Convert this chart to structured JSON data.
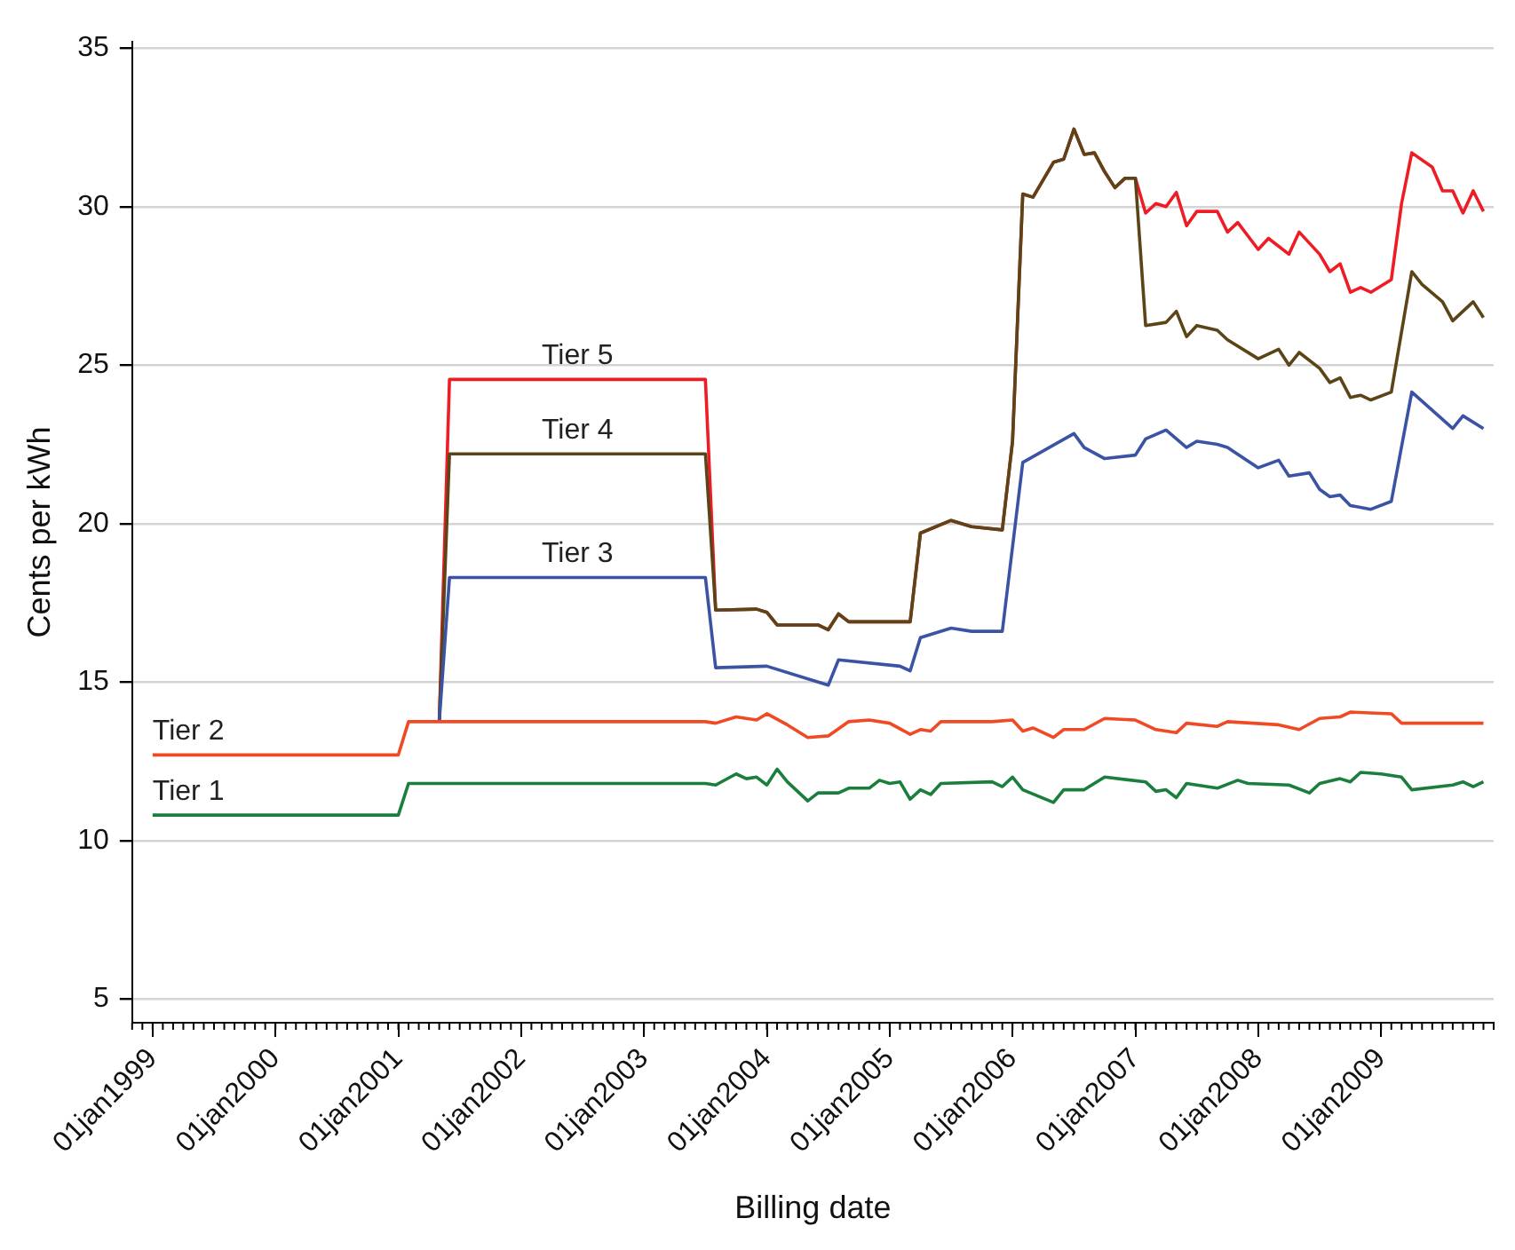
{
  "chart_data": {
    "type": "line",
    "xlabel": "Billing date",
    "ylabel": "Cents per kWh",
    "xlim": [
      "1998-11",
      "2009-12"
    ],
    "ylim": [
      4.25,
      35.2
    ],
    "xticks": [
      {
        "value": "1999-01-01",
        "label": "01jan1999"
      },
      {
        "value": "2000-01-01",
        "label": "01jan2000"
      },
      {
        "value": "2001-01-01",
        "label": "01jan2001"
      },
      {
        "value": "2002-01-01",
        "label": "01jan2002"
      },
      {
        "value": "2003-01-01",
        "label": "01jan2003"
      },
      {
        "value": "2004-01-01",
        "label": "01jan2004"
      },
      {
        "value": "2005-01-01",
        "label": "01jan2005"
      },
      {
        "value": "2006-01-01",
        "label": "01jan2006"
      },
      {
        "value": "2007-01-01",
        "label": "01jan2007"
      },
      {
        "value": "2008-01-01",
        "label": "01jan2008"
      },
      {
        "value": "2009-01-01",
        "label": "01jan2009"
      }
    ],
    "yticks": [
      5,
      10,
      15,
      20,
      25,
      30,
      35
    ],
    "grid": "y",
    "legend": false,
    "marker": "none",
    "line_style": "solid",
    "series": [
      {
        "name": "Tier 1",
        "color": "#1a7f3c",
        "x": [
          "1999-01",
          "2001-01",
          "2001-02",
          "2003-07",
          "2003-08",
          "2003-10",
          "2003-11",
          "2003-12",
          "2004-01",
          "2004-02",
          "2004-03",
          "2004-05",
          "2004-06",
          "2004-08",
          "2004-09",
          "2004-11",
          "2004-12",
          "2005-01",
          "2005-02",
          "2005-03",
          "2005-04",
          "2005-05",
          "2005-06",
          "2005-11",
          "2005-12",
          "2006-01",
          "2006-02",
          "2006-05",
          "2006-06",
          "2006-08",
          "2006-10",
          "2007-02",
          "2007-03",
          "2007-04",
          "2007-05",
          "2007-06",
          "2007-09",
          "2007-11",
          "2007-12",
          "2008-04",
          "2008-06",
          "2008-07",
          "2008-09",
          "2008-10",
          "2008-11",
          "2009-01",
          "2009-03",
          "2009-04",
          "2009-08",
          "2009-09",
          "2009-10",
          "2009-11"
        ],
        "values": [
          10.8,
          10.8,
          11.8,
          11.8,
          11.75,
          12.1,
          11.95,
          12.0,
          11.75,
          12.25,
          11.85,
          11.25,
          11.5,
          11.5,
          11.65,
          11.65,
          11.9,
          11.8,
          11.85,
          11.3,
          11.6,
          11.45,
          11.8,
          11.85,
          11.7,
          12.0,
          11.6,
          11.2,
          11.6,
          11.6,
          12.0,
          11.85,
          11.55,
          11.6,
          11.35,
          11.8,
          11.65,
          11.9,
          11.8,
          11.75,
          11.5,
          11.8,
          11.95,
          11.85,
          12.15,
          12.1,
          12.0,
          11.6,
          11.75,
          11.85,
          11.7,
          11.85
        ]
      },
      {
        "name": "Tier 2",
        "color": "#f04a24",
        "x": [
          "1999-01",
          "2001-01",
          "2001-02",
          "2003-07",
          "2003-08",
          "2003-10",
          "2003-11",
          "2003-12",
          "2004-01",
          "2004-03",
          "2004-05",
          "2004-07",
          "2004-09",
          "2004-11",
          "2005-01",
          "2005-03",
          "2005-04",
          "2005-05",
          "2005-06",
          "2005-11",
          "2006-01",
          "2006-02",
          "2006-03",
          "2006-05",
          "2006-06",
          "2006-08",
          "2006-10",
          "2007-01",
          "2007-03",
          "2007-05",
          "2007-06",
          "2007-09",
          "2007-10",
          "2008-03",
          "2008-05",
          "2008-07",
          "2008-09",
          "2008-10",
          "2009-02",
          "2009-03",
          "2009-11"
        ],
        "values": [
          12.7,
          12.7,
          13.75,
          13.75,
          13.7,
          13.9,
          13.85,
          13.8,
          14.0,
          13.65,
          13.25,
          13.3,
          13.75,
          13.8,
          13.7,
          13.35,
          13.5,
          13.45,
          13.75,
          13.75,
          13.8,
          13.45,
          13.55,
          13.25,
          13.5,
          13.5,
          13.85,
          13.8,
          13.5,
          13.4,
          13.7,
          13.6,
          13.75,
          13.65,
          13.5,
          13.85,
          13.9,
          14.05,
          14.0,
          13.7,
          13.7
        ]
      },
      {
        "name": "Tier 3",
        "color": "#3a53a4",
        "x": [
          "2001-05",
          "2001-06",
          "2003-07",
          "2003-08",
          "2004-01",
          "2004-07",
          "2004-08",
          "2005-02",
          "2005-03",
          "2005-04",
          "2005-07",
          "2005-09",
          "2005-12",
          "2006-02",
          "2006-07",
          "2006-08",
          "2006-10",
          "2007-01",
          "2007-02",
          "2007-04",
          "2007-06",
          "2007-07",
          "2007-09",
          "2007-10",
          "2008-01",
          "2008-03",
          "2008-04",
          "2008-06",
          "2008-07",
          "2008-08",
          "2008-09",
          "2008-10",
          "2008-12",
          "2009-02",
          "2009-04",
          "2009-08",
          "2009-09",
          "2009-11"
        ],
        "values": [
          13.75,
          18.3,
          18.3,
          15.45,
          15.5,
          14.9,
          15.7,
          15.5,
          15.35,
          16.4,
          16.7,
          16.6,
          16.6,
          21.93,
          22.84,
          22.4,
          22.05,
          22.16,
          22.67,
          22.95,
          22.4,
          22.6,
          22.5,
          22.4,
          21.76,
          22.0,
          21.5,
          21.6,
          21.08,
          20.85,
          20.9,
          20.57,
          20.45,
          20.7,
          24.15,
          23.0,
          23.4,
          23.0
        ]
      },
      {
        "name": "Tier 4",
        "color": "#5c4419",
        "x": [
          "2001-05",
          "2001-06",
          "2003-07",
          "2003-08",
          "2003-12",
          "2004-01",
          "2004-02",
          "2004-06",
          "2004-07",
          "2004-08",
          "2004-09",
          "2005-03",
          "2005-04",
          "2005-07",
          "2005-09",
          "2005-12",
          "2006-01",
          "2006-02",
          "2006-03",
          "2006-05",
          "2006-06",
          "2006-07",
          "2006-08",
          "2006-09",
          "2006-10",
          "2006-11",
          "2006-12",
          "2007-01",
          "2007-02",
          "2007-04",
          "2007-05",
          "2007-06",
          "2007-07",
          "2007-09",
          "2007-10",
          "2008-01",
          "2008-03",
          "2008-04",
          "2008-05",
          "2008-07",
          "2008-08",
          "2008-09",
          "2008-10",
          "2008-11",
          "2008-12",
          "2009-02",
          "2009-04",
          "2009-05",
          "2009-07",
          "2009-08",
          "2009-10",
          "2009-11"
        ],
        "values": [
          13.75,
          22.2,
          22.2,
          17.27,
          17.3,
          17.2,
          16.8,
          16.8,
          16.65,
          17.15,
          16.9,
          16.9,
          19.7,
          20.1,
          19.9,
          19.8,
          22.6,
          30.4,
          30.3,
          31.4,
          31.5,
          32.45,
          31.65,
          31.7,
          31.1,
          30.6,
          30.9,
          30.9,
          26.25,
          26.35,
          26.7,
          25.9,
          26.25,
          26.1,
          25.8,
          25.2,
          25.5,
          25.0,
          25.4,
          24.9,
          24.45,
          24.6,
          23.98,
          24.05,
          23.9,
          24.15,
          27.95,
          27.55,
          27.0,
          26.4,
          27.0,
          26.5
        ]
      },
      {
        "name": "Tier 5",
        "color": "#ee1c25",
        "x": [
          "2001-05",
          "2001-06",
          "2003-07",
          "2003-08",
          "2003-12",
          "2004-01",
          "2004-02",
          "2004-06",
          "2004-07",
          "2004-08",
          "2004-09",
          "2005-03",
          "2005-04",
          "2005-07",
          "2005-09",
          "2005-12",
          "2006-01",
          "2006-02",
          "2006-03",
          "2006-05",
          "2006-06",
          "2006-07",
          "2006-08",
          "2006-09",
          "2006-10",
          "2006-11",
          "2006-12",
          "2007-01",
          "2007-02",
          "2007-03",
          "2007-04",
          "2007-05",
          "2007-06",
          "2007-07",
          "2007-09",
          "2007-10",
          "2007-11",
          "2008-01",
          "2008-02",
          "2008-04",
          "2008-05",
          "2008-07",
          "2008-08",
          "2008-09",
          "2008-10",
          "2008-11",
          "2008-12",
          "2009-02",
          "2009-03",
          "2009-04",
          "2009-06",
          "2009-07",
          "2009-08",
          "2009-09",
          "2009-10",
          "2009-11"
        ],
        "values": [
          13.75,
          24.55,
          24.55,
          17.27,
          17.3,
          17.2,
          16.8,
          16.8,
          16.65,
          17.15,
          16.9,
          16.9,
          19.7,
          20.1,
          19.9,
          19.8,
          22.6,
          30.4,
          30.3,
          31.4,
          31.5,
          32.45,
          31.65,
          31.7,
          31.1,
          30.6,
          30.9,
          30.9,
          29.8,
          30.1,
          30.0,
          30.45,
          29.4,
          29.85,
          29.85,
          29.2,
          29.5,
          28.65,
          29.0,
          28.5,
          29.2,
          28.5,
          27.95,
          28.2,
          27.3,
          27.45,
          27.3,
          27.7,
          30.1,
          31.7,
          31.25,
          30.5,
          30.5,
          29.8,
          30.5,
          29.85
        ]
      }
    ]
  }
}
